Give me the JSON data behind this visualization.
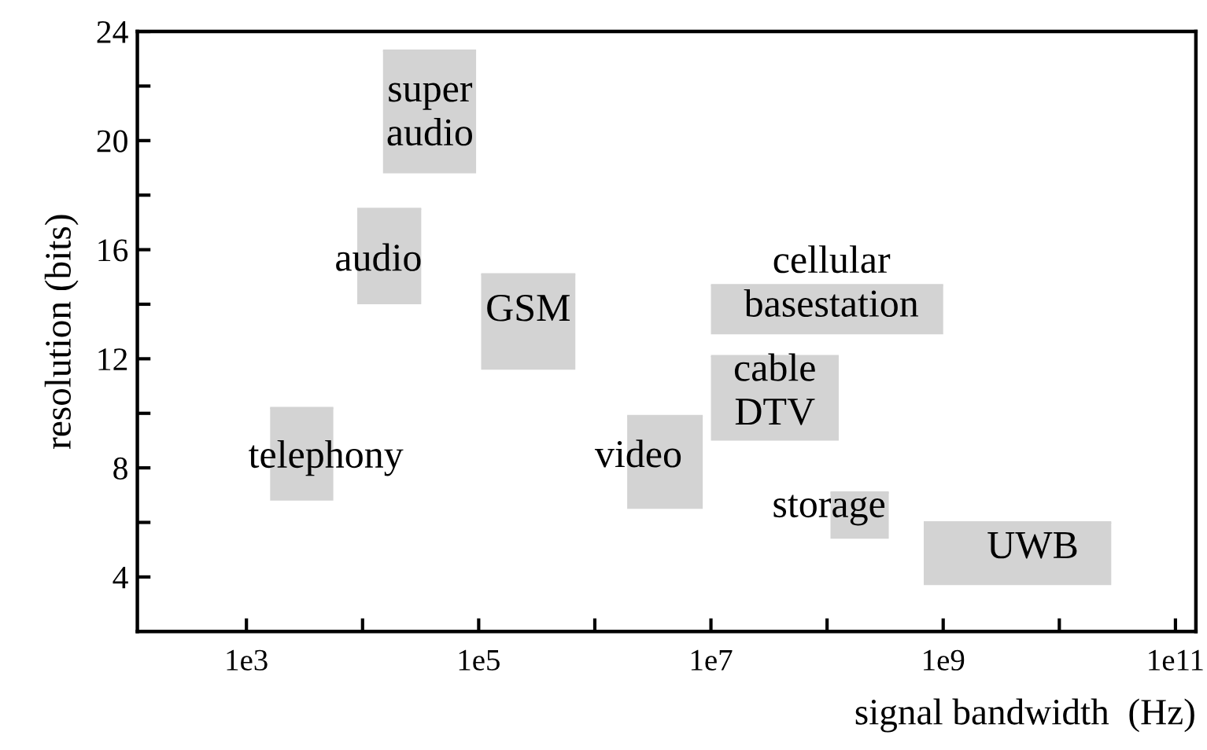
{
  "chart_data": {
    "type": "bar",
    "xlabel": "signal bandwidth  (Hz)",
    "ylabel": "resolution (bits)",
    "log": "x",
    "grid": false,
    "legend": false,
    "xlim": [
      115,
      150000000000
    ],
    "ylim": [
      2,
      24
    ],
    "xticks": [
      {
        "value": 1000,
        "label": "1e3"
      },
      {
        "value": 10000,
        "label": null
      },
      {
        "value": 100000,
        "label": "1e5"
      },
      {
        "value": 1000000,
        "label": null
      },
      {
        "value": 10000000,
        "label": "1e7"
      },
      {
        "value": 100000000,
        "label": null
      },
      {
        "value": 1000000000,
        "label": "1e9"
      },
      {
        "value": 10000000000,
        "label": null
      },
      {
        "value": 100000000000,
        "label": "1e11"
      }
    ],
    "yticks": [
      4,
      {
        "value": 6,
        "label": null
      },
      8,
      {
        "value": 10,
        "label": null
      },
      12,
      {
        "value": 14,
        "label": null
      },
      16,
      {
        "value": 18,
        "label": null
      },
      20,
      {
        "value": 22,
        "label": null
      },
      24
    ],
    "series": [
      {
        "color": "#d3d3d3",
        "x": [
          3000,
          17000,
          38000,
          267000,
          4000000,
          35500000,
          100000000,
          190700000,
          4360000000
        ],
        "base": [
          6.8,
          14,
          18.8,
          11.6,
          6.5,
          9,
          12.9,
          5.4,
          3.7
        ],
        "values": [
          3.4,
          3.5,
          4.5,
          3.5,
          3.4,
          3.1,
          1.8,
          1.7,
          2.3
        ],
        "xerrors": [
          [
            1600,
            5600
          ],
          [
            9000,
            32000
          ],
          [
            15000,
            95000
          ],
          [
            105000,
            680000
          ],
          [
            1900000,
            8500000
          ],
          [
            10000000,
            126000000
          ],
          [
            10000000,
            1000000000
          ],
          [
            107000000,
            340000000
          ],
          [
            680000000,
            28000000000
          ]
        ]
      }
    ],
    "annotations": [
      {
        "text": "telephony",
        "x": 3000,
        "y": 10.2
      },
      {
        "text": "audio",
        "x": 17000,
        "y": 17.5
      },
      {
        "text": "super\naudio",
        "x": 38000,
        "y": 23.3
      },
      {
        "text": "GSM",
        "x": 267000,
        "y": 15.1
      },
      {
        "text": "video",
        "x": 4000000,
        "y": 9.9
      },
      {
        "text": "cable\nDTV",
        "x": 35500000,
        "y": 12.1
      },
      {
        "text": "cellular\nbasestation",
        "x": 100000000,
        "y": 14.7
      },
      {
        "text": "storage",
        "x": 190700000,
        "y": 7.1
      },
      {
        "text": "UWB",
        "x": 4360000000,
        "y": 6
      }
    ]
  }
}
